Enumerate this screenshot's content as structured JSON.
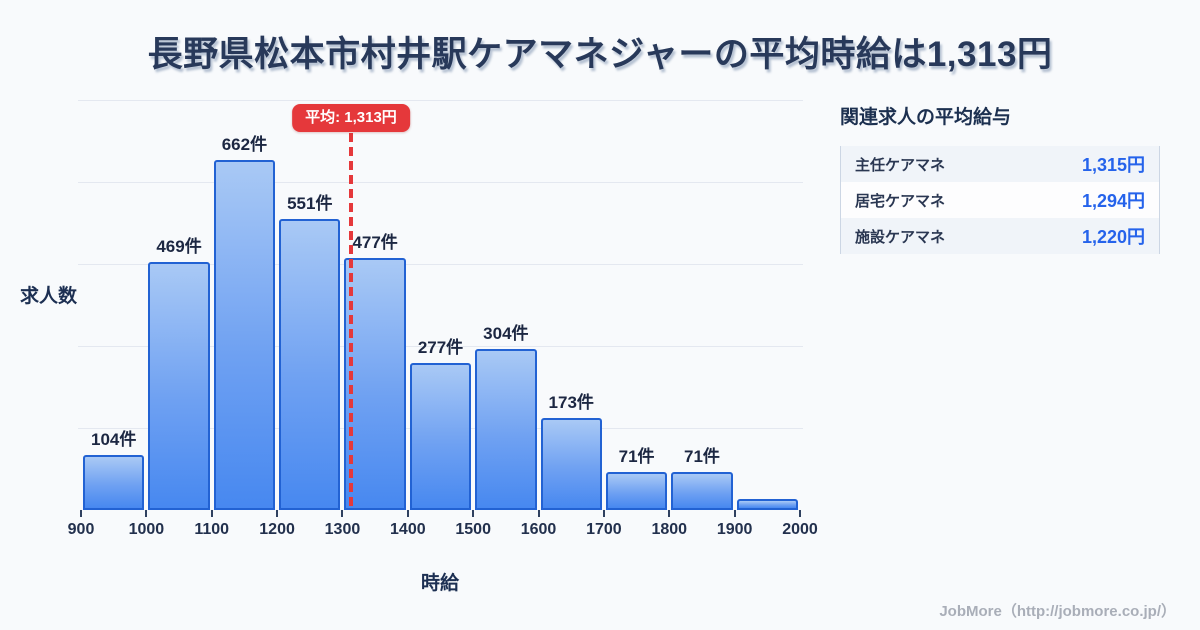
{
  "title": "長野県松本市村井駅ケアマネジャーの平均時給は1,313円",
  "chart_data": {
    "type": "bar",
    "title": "長野県松本市村井駅ケアマネジャーの平均時給は1,313円",
    "xlabel": "時給",
    "ylabel": "求人数",
    "bin_edges": [
      900,
      1000,
      1100,
      1200,
      1300,
      1400,
      1500,
      1600,
      1700,
      1800,
      1900,
      2000
    ],
    "values": [
      104,
      469,
      662,
      551,
      477,
      277,
      304,
      173,
      71,
      71,
      20
    ],
    "bar_labels": [
      "104件",
      "469件",
      "662件",
      "551件",
      "477件",
      "277件",
      "304件",
      "173件",
      "71件",
      "71件",
      ""
    ],
    "unit": "件",
    "xlim": [
      900,
      2000
    ],
    "ylim": [
      0,
      775
    ],
    "gridline_count": 5,
    "grid": "horizontal",
    "legend": "none",
    "average": {
      "value": 1313,
      "label": "平均: 1,313円",
      "line_color": "#e5383b"
    }
  },
  "sidebar": {
    "title": "関連求人の平均給与",
    "rows": [
      {
        "label": "主任ケアマネ",
        "value": "1,315円"
      },
      {
        "label": "居宅ケアマネ",
        "value": "1,294円"
      },
      {
        "label": "施設ケアマネ",
        "value": "1,220円"
      }
    ]
  },
  "footer": {
    "credit": "JobMore（http://jobmore.co.jp/）"
  },
  "colors": {
    "background": "#f8fafc",
    "title_navy": "#28395a",
    "bar_gradient_top": "#a9c9f5",
    "bar_gradient_bottom": "#4788f0",
    "bar_border": "#2262d3",
    "gridline": "#e4e8f0",
    "accent_red": "#e5383b",
    "value_blue": "#2563eb",
    "footer_gray": "#a9aeb8"
  }
}
